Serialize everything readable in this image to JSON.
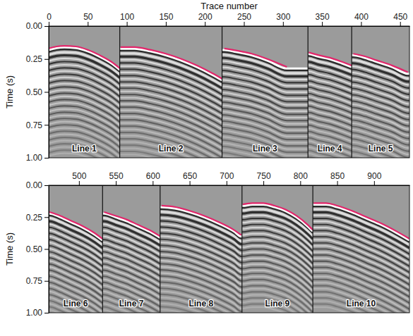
{
  "chart_data": [
    {
      "type": "line",
      "x_label": "Trace number",
      "y_label": "Time (s)",
      "xlim": [
        0,
        462
      ],
      "xticks": [
        0,
        50,
        100,
        150,
        200,
        250,
        300,
        350,
        400,
        450
      ],
      "ylim": [
        0,
        1
      ],
      "yticks": [
        {
          "value": 0,
          "label": "0.00"
        },
        {
          "value": 0.25,
          "label": "0.25"
        },
        {
          "value": 0.5,
          "label": "0.50"
        },
        {
          "value": 0.75,
          "label": "0.75"
        },
        {
          "value": 1,
          "label": "1.00"
        }
      ],
      "series": [
        {
          "name": "Line 1",
          "color": "#e3266b",
          "xlim": [
            0,
            91
          ],
          "x": [
            0,
            10,
            20,
            35,
            50,
            65,
            80,
            91
          ],
          "values": [
            0.17,
            0.155,
            0.15,
            0.155,
            0.18,
            0.22,
            0.27,
            0.32
          ]
        },
        {
          "name": "Line 2",
          "color": "#e3266b",
          "xlim": [
            91,
            222
          ],
          "x": [
            92,
            110,
            130,
            150,
            170,
            190,
            210,
            222
          ],
          "values": [
            0.16,
            0.16,
            0.18,
            0.21,
            0.25,
            0.3,
            0.36,
            0.4
          ]
        },
        {
          "name": "Line 3",
          "color": "#e3266b",
          "xlim": [
            222,
            332
          ],
          "x": [
            225,
            240,
            260,
            280,
            305
          ],
          "values": [
            0.17,
            0.185,
            0.21,
            0.25,
            0.31
          ]
        },
        {
          "name": "Line 4",
          "color": "#e3266b",
          "xlim": [
            332,
            388
          ],
          "x": [
            333,
            345,
            360,
            375,
            388
          ],
          "values": [
            0.2,
            0.22,
            0.24,
            0.27,
            0.3
          ]
        },
        {
          "name": "Line 5",
          "color": "#e3266b",
          "xlim": [
            388,
            462
          ],
          "x": [
            390,
            405,
            420,
            440,
            460
          ],
          "values": [
            0.21,
            0.23,
            0.26,
            0.3,
            0.35
          ]
        }
      ]
    },
    {
      "type": "line",
      "y_label": "Time (s)",
      "xlim": [
        459,
        948
      ],
      "xticks": [
        500,
        550,
        600,
        650,
        700,
        750,
        800,
        850,
        900
      ],
      "ylim": [
        0,
        1
      ],
      "yticks": [
        {
          "value": 0,
          "label": "0.00"
        },
        {
          "value": 0.25,
          "label": "0.25"
        },
        {
          "value": 0.5,
          "label": "0.50"
        },
        {
          "value": 0.75,
          "label": "0.75"
        },
        {
          "value": 1,
          "label": "1.00"
        }
      ],
      "series": [
        {
          "name": "Line 6",
          "color": "#e3266b",
          "xlim": [
            459,
            532
          ],
          "x": [
            460,
            475,
            490,
            505,
            520,
            532
          ],
          "values": [
            0.21,
            0.24,
            0.28,
            0.32,
            0.37,
            0.42
          ]
        },
        {
          "name": "Line 7",
          "color": "#e3266b",
          "xlim": [
            532,
            610
          ],
          "x": [
            534,
            550,
            565,
            580,
            595,
            610
          ],
          "values": [
            0.21,
            0.24,
            0.27,
            0.31,
            0.35,
            0.4
          ]
        },
        {
          "name": "Line 8",
          "color": "#e3266b",
          "xlim": [
            610,
            721
          ],
          "x": [
            612,
            630,
            650,
            670,
            690,
            710,
            720
          ],
          "values": [
            0.16,
            0.17,
            0.2,
            0.24,
            0.29,
            0.35,
            0.39
          ]
        },
        {
          "name": "Line 9",
          "color": "#e3266b",
          "xlim": [
            721,
            817
          ],
          "x": [
            722,
            735,
            750,
            765,
            780,
            795,
            810,
            817
          ],
          "values": [
            0.15,
            0.14,
            0.14,
            0.16,
            0.19,
            0.24,
            0.31,
            0.35
          ]
        },
        {
          "name": "Line 10",
          "color": "#e3266b",
          "xlim": [
            817,
            948
          ],
          "x": [
            818,
            835,
            850,
            870,
            890,
            910,
            930,
            948
          ],
          "values": [
            0.14,
            0.14,
            0.16,
            0.2,
            0.25,
            0.3,
            0.36,
            0.42
          ]
        }
      ]
    }
  ]
}
